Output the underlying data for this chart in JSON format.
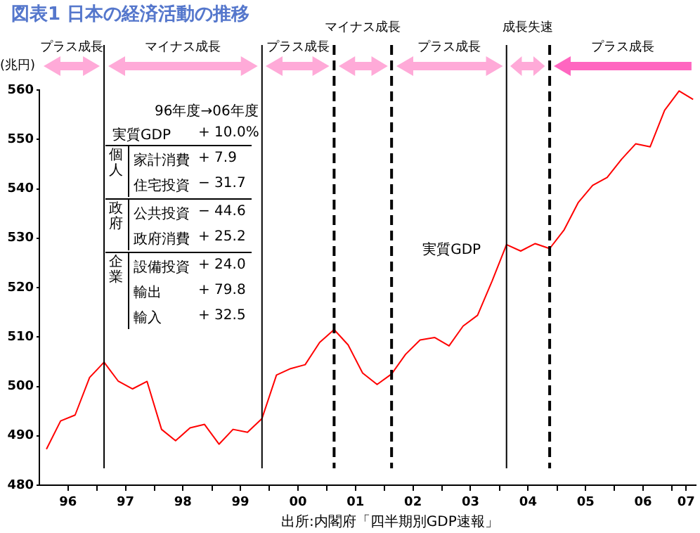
{
  "chart_data": {
    "type": "line",
    "title": "図表1 日本の経済活動の推移",
    "ylabel": "(兆円)",
    "x": [
      "1996-02-15",
      "1996-05-15",
      "1996-08-15",
      "1996-11-15",
      "1997-02-15",
      "1997-05-15",
      "1997-08-15",
      "1997-11-15",
      "1998-02-15",
      "1998-05-15",
      "1998-08-15",
      "1998-11-15",
      "1999-02-15",
      "1999-05-15",
      "1999-08-15",
      "1999-11-15",
      "2000-02-15",
      "2000-05-15",
      "2000-08-15",
      "2000-11-15",
      "2001-02-15",
      "2001-05-15",
      "2001-08-15",
      "2001-11-15",
      "2002-02-15",
      "2002-05-15",
      "2002-08-15",
      "2002-11-15",
      "2003-02-15",
      "2003-05-15",
      "2003-08-15",
      "2003-11-15",
      "2004-02-15",
      "2004-05-15",
      "2004-08-15",
      "2004-11-15",
      "2005-02-15",
      "2005-05-15",
      "2005-08-15",
      "2005-11-15",
      "2006-02-15",
      "2006-05-15",
      "2006-08-15",
      "2006-11-15",
      "2007-02-15",
      "2007-05-15"
    ],
    "series": [
      {
        "name": "実質GDP",
        "color": "#ff0000",
        "values": [
          487.3,
          493.0,
          494.2,
          501.8,
          504.9,
          501.1,
          499.5,
          501.0,
          491.3,
          489.0,
          491.6,
          492.3,
          488.3,
          491.3,
          490.7,
          493.5,
          502.3,
          503.6,
          504.4,
          508.9,
          511.5,
          508.4,
          502.7,
          500.4,
          502.5,
          506.5,
          509.4,
          509.9,
          508.2,
          512.2,
          514.4,
          521.3,
          528.7,
          527.4,
          528.9,
          527.9,
          531.7,
          537.2,
          540.7,
          542.3,
          546.0,
          549.1,
          548.5,
          555.9,
          559.8,
          558.1
        ]
      }
    ],
    "marker": "none",
    "xlim": [
      "1996-01-01",
      "2007-06-01"
    ],
    "xticks": [
      {
        "value": "1996-07-01",
        "label": "96"
      },
      {
        "value": "1997-01-01",
        "label": null
      },
      {
        "value": "1997-07-01",
        "label": "97"
      },
      {
        "value": "1998-01-01",
        "label": null
      },
      {
        "value": "1998-07-01",
        "label": "98"
      },
      {
        "value": "1999-01-01",
        "label": null
      },
      {
        "value": "1999-07-01",
        "label": "99"
      },
      {
        "value": "2000-01-01",
        "label": null
      },
      {
        "value": "2000-07-01",
        "label": "00"
      },
      {
        "value": "2001-01-01",
        "label": null
      },
      {
        "value": "2001-07-01",
        "label": "01"
      },
      {
        "value": "2002-01-01",
        "label": null
      },
      {
        "value": "2002-07-01",
        "label": "02"
      },
      {
        "value": "2003-01-01",
        "label": null
      },
      {
        "value": "2003-07-01",
        "label": "03"
      },
      {
        "value": "2004-01-01",
        "label": null
      },
      {
        "value": "2004-07-01",
        "label": "04"
      },
      {
        "value": "2005-01-01",
        "label": null
      },
      {
        "value": "2005-07-01",
        "label": "05"
      },
      {
        "value": "2006-01-01",
        "label": null
      },
      {
        "value": "2006-07-01",
        "label": "06"
      },
      {
        "value": "2007-01-01",
        "label": null
      },
      {
        "value": "2007-04-01",
        "label": "07"
      }
    ],
    "ylim": [
      480,
      560
    ],
    "yticks": [
      480,
      490,
      500,
      510,
      520,
      530,
      540,
      550,
      560
    ],
    "ref_lines": [
      {
        "axis": "x",
        "value": "1997-02-15",
        "line_style": "solid",
        "color": "#000000"
      },
      {
        "axis": "x",
        "value": "1999-11-15",
        "line_style": "solid",
        "color": "#000000"
      },
      {
        "axis": "x",
        "value": "2001-02-15",
        "line_style": "dashed",
        "color": "#000000"
      },
      {
        "axis": "x",
        "value": "2002-02-15",
        "line_style": "dashed",
        "color": "#000000"
      },
      {
        "axis": "x",
        "value": "2004-02-15",
        "line_style": "solid",
        "color": "#000000"
      },
      {
        "axis": "x",
        "value": "2004-11-15",
        "line_style": "dashed",
        "color": "#000000"
      }
    ],
    "annotations": [
      "96年度→06年度",
      "実質GDP",
      "+ 10.0%",
      "個人",
      "家計消費",
      "+ 7.9",
      "住宅投資",
      "− 31.7",
      "政府",
      "公共投資",
      "− 44.6",
      "政府消費",
      "+ 25.2",
      "企業",
      "設備投資",
      "+ 24.0",
      "輸出",
      "+ 79.8",
      "輸入",
      "+ 32.5",
      "出所:内閣府「四半期別GDP速報」",
      "プラス成長",
      "マイナス成長",
      "プラス成長",
      "マイナス成長",
      "プラス成長",
      "成長失速",
      "プラス成長"
    ]
  }
}
